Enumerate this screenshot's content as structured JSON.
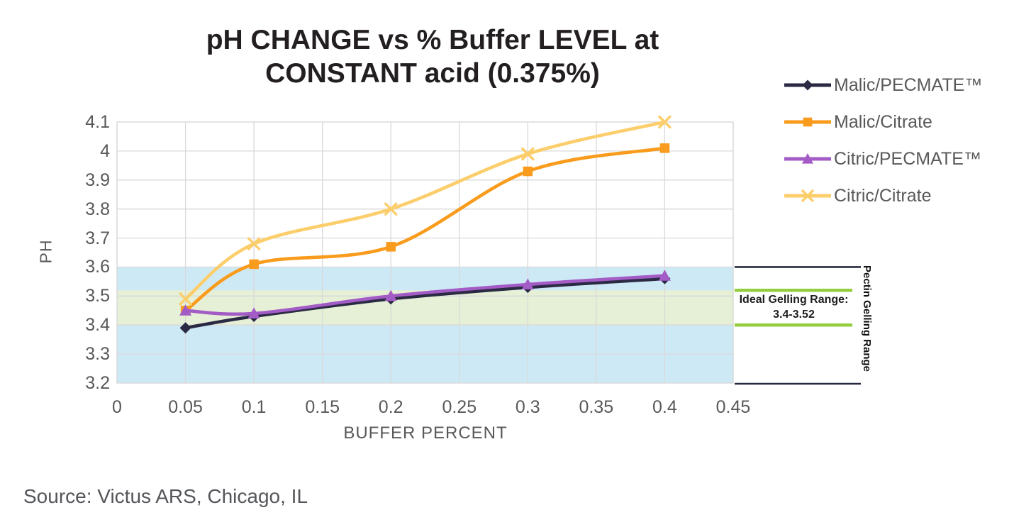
{
  "title": {
    "line1": "pH CHANGE vs % Buffer LEVEL at",
    "line2": "CONSTANT acid (0.375%)"
  },
  "source": "Source: Victus ARS, Chicago, IL",
  "chart_data": {
    "type": "line",
    "x": [
      0.05,
      0.1,
      0.2,
      0.3,
      0.4
    ],
    "series": [
      {
        "name": "Malic/PECMATE™",
        "color": "#2b2a44",
        "marker": "diamond",
        "values": [
          3.39,
          3.43,
          3.49,
          3.53,
          3.56
        ]
      },
      {
        "name": "Malic/Citrate",
        "color": "#F99B1C",
        "marker": "square",
        "values": [
          3.45,
          3.61,
          3.67,
          3.93,
          4.01
        ]
      },
      {
        "name": "Citric/PECMATE™",
        "color": "#A35BC5",
        "marker": "triangle",
        "values": [
          3.45,
          3.44,
          3.5,
          3.54,
          3.57
        ]
      },
      {
        "name": "Citric/Citrate",
        "color": "#FCCE6B",
        "marker": "x",
        "values": [
          3.49,
          3.68,
          3.8,
          3.99,
          4.1
        ]
      }
    ],
    "xlabel": "BUFFER PERCENT",
    "ylabel": "PH",
    "xlim": [
      0,
      0.45
    ],
    "ylim": [
      3.2,
      4.1
    ],
    "x_ticks": [
      "0",
      "0.05",
      "0.1",
      "0.15",
      "0.2",
      "0.25",
      "0.3",
      "0.35",
      "0.4",
      "0.45"
    ],
    "y_ticks": [
      "4.1",
      "4",
      "3.9",
      "3.8",
      "3.7",
      "3.6",
      "3.5",
      "3.4",
      "3.3",
      "3.2"
    ],
    "grid": true,
    "legend_position": "right",
    "gridline_color": "#d9d9d9",
    "bands": [
      {
        "name": "pectin-gelling-band",
        "from": 3.2,
        "to": 3.6,
        "color": "#cee9f6"
      },
      {
        "name": "ideal-gelling-band",
        "from": 3.4,
        "to": 3.52,
        "color": "#e6f0d6"
      }
    ]
  },
  "annotations": {
    "ideal_label_line1": "Ideal Gelling Range:",
    "ideal_label_line2": "3.4-3.52",
    "ideal_line_color": "#94ce3f",
    "ideal_from": 3.4,
    "ideal_to": 3.52,
    "pectin_label": "Pectin Gelling Range",
    "bracket_color": "#262a3f",
    "bracket_from": 3.2,
    "bracket_to": 3.6
  },
  "text_colors": {
    "title": "#231f20",
    "axis_text": "#595959",
    "source_text": "#54565a"
  }
}
